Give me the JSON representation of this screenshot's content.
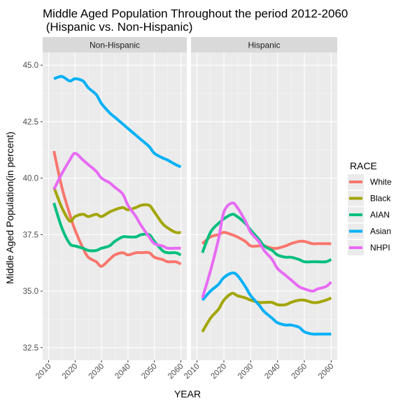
{
  "chart_data": {
    "type": "line",
    "title_line1": "Middle Aged Population Throughout the period 2012-2060",
    "title_line2": " (Hispanic vs. Non-Hispanic)",
    "xlabel": "YEAR",
    "ylabel": "Middle Aged Population(in percent)",
    "xlim": [
      2010,
      2060
    ],
    "ylim": [
      32.5,
      45.0
    ],
    "xticks": [
      2010,
      2020,
      2030,
      2040,
      2050,
      2060
    ],
    "xtick_labels": [
      "2010",
      "2020",
      "2030",
      "2040",
      "2050",
      "2060"
    ],
    "yticks": [
      32.5,
      35.0,
      37.5,
      40.0,
      42.5,
      45.0
    ],
    "ytick_labels": [
      "32.5",
      "35.0",
      "37.5",
      "40.0",
      "42.5",
      "45.0"
    ],
    "grid": true,
    "legend": {
      "title": "RACE",
      "position": "right",
      "items": [
        {
          "key": "white",
          "label": "White",
          "color": "#F8766D"
        },
        {
          "key": "black",
          "label": "Black",
          "color": "#A3A500"
        },
        {
          "key": "aian",
          "label": "AIAN",
          "color": "#00BF7D"
        },
        {
          "key": "asian",
          "label": "Asian",
          "color": "#00B0F6"
        },
        {
          "key": "nhpi",
          "label": "NHPI",
          "color": "#E76BF3"
        }
      ]
    },
    "panels": [
      {
        "label": "Non-Hispanic",
        "series": [
          {
            "key": "white",
            "x": [
              2012,
              2015,
              2018,
              2020,
              2023,
              2025,
              2028,
              2030,
              2033,
              2035,
              2038,
              2040,
              2043,
              2045,
              2048,
              2050,
              2053,
              2055,
              2058,
              2060
            ],
            "values": [
              41.2,
              39.6,
              38.4,
              37.7,
              36.9,
              36.5,
              36.3,
              36.1,
              36.4,
              36.6,
              36.7,
              36.6,
              36.7,
              36.7,
              36.7,
              36.5,
              36.4,
              36.3,
              36.3,
              36.2
            ]
          },
          {
            "key": "black",
            "x": [
              2012,
              2015,
              2018,
              2020,
              2023,
              2025,
              2028,
              2030,
              2033,
              2035,
              2038,
              2040,
              2043,
              2045,
              2048,
              2050,
              2053,
              2055,
              2058,
              2060
            ],
            "values": [
              39.6,
              38.7,
              38.1,
              38.3,
              38.4,
              38.3,
              38.4,
              38.3,
              38.5,
              38.6,
              38.7,
              38.6,
              38.7,
              38.8,
              38.8,
              38.5,
              38.0,
              37.8,
              37.6,
              37.6
            ]
          },
          {
            "key": "aian",
            "x": [
              2012,
              2015,
              2018,
              2020,
              2023,
              2025,
              2028,
              2030,
              2033,
              2035,
              2038,
              2040,
              2043,
              2045,
              2048,
              2050,
              2053,
              2055,
              2058,
              2060
            ],
            "values": [
              38.9,
              37.8,
              37.1,
              37.0,
              36.9,
              36.8,
              36.8,
              36.9,
              37.0,
              37.2,
              37.4,
              37.4,
              37.4,
              37.5,
              37.5,
              37.2,
              36.8,
              36.7,
              36.7,
              36.6
            ]
          },
          {
            "key": "asian",
            "x": [
              2012,
              2015,
              2018,
              2020,
              2023,
              2025,
              2028,
              2030,
              2033,
              2035,
              2038,
              2040,
              2043,
              2045,
              2048,
              2050,
              2053,
              2055,
              2058,
              2060
            ],
            "values": [
              44.4,
              44.5,
              44.3,
              44.4,
              44.3,
              44.0,
              43.7,
              43.3,
              42.9,
              42.7,
              42.4,
              42.2,
              41.9,
              41.7,
              41.4,
              41.1,
              40.9,
              40.8,
              40.6,
              40.5
            ]
          },
          {
            "key": "nhpi",
            "x": [
              2012,
              2015,
              2018,
              2020,
              2023,
              2025,
              2028,
              2030,
              2033,
              2035,
              2038,
              2040,
              2043,
              2045,
              2048,
              2050,
              2053,
              2055,
              2058,
              2060
            ],
            "values": [
              39.5,
              40.2,
              40.8,
              41.1,
              40.8,
              40.6,
              40.3,
              40.0,
              39.8,
              39.6,
              39.3,
              38.8,
              38.3,
              37.9,
              37.4,
              37.1,
              37.0,
              36.9,
              36.9,
              36.9
            ]
          }
        ]
      },
      {
        "label": "Hispanic",
        "series": [
          {
            "key": "white",
            "x": [
              2012,
              2015,
              2018,
              2020,
              2023,
              2025,
              2028,
              2030,
              2033,
              2035,
              2038,
              2040,
              2043,
              2045,
              2048,
              2050,
              2053,
              2055,
              2058,
              2060
            ],
            "values": [
              37.1,
              37.4,
              37.5,
              37.6,
              37.5,
              37.4,
              37.2,
              37.0,
              37.0,
              37.0,
              36.9,
              36.9,
              37.0,
              37.1,
              37.2,
              37.2,
              37.1,
              37.1,
              37.1,
              37.1
            ]
          },
          {
            "key": "black",
            "x": [
              2012,
              2015,
              2018,
              2020,
              2023,
              2025,
              2028,
              2030,
              2033,
              2035,
              2038,
              2040,
              2043,
              2045,
              2048,
              2050,
              2053,
              2055,
              2058,
              2060
            ],
            "values": [
              33.2,
              33.8,
              34.2,
              34.6,
              34.9,
              34.8,
              34.7,
              34.6,
              34.5,
              34.5,
              34.5,
              34.4,
              34.4,
              34.5,
              34.6,
              34.6,
              34.5,
              34.5,
              34.6,
              34.7
            ]
          },
          {
            "key": "aian",
            "x": [
              2012,
              2015,
              2018,
              2020,
              2023,
              2025,
              2028,
              2030,
              2033,
              2035,
              2038,
              2040,
              2043,
              2045,
              2048,
              2050,
              2053,
              2055,
              2058,
              2060
            ],
            "values": [
              36.7,
              37.6,
              38.0,
              38.2,
              38.4,
              38.3,
              38.0,
              37.7,
              37.3,
              37.0,
              36.8,
              36.6,
              36.5,
              36.5,
              36.4,
              36.3,
              36.3,
              36.3,
              36.3,
              36.4
            ]
          },
          {
            "key": "asian",
            "x": [
              2012,
              2015,
              2018,
              2020,
              2023,
              2025,
              2028,
              2030,
              2033,
              2035,
              2038,
              2040,
              2043,
              2045,
              2048,
              2050,
              2053,
              2055,
              2058,
              2060
            ],
            "values": [
              34.6,
              35.0,
              35.3,
              35.6,
              35.8,
              35.7,
              35.2,
              34.8,
              34.4,
              34.1,
              33.8,
              33.6,
              33.5,
              33.5,
              33.4,
              33.2,
              33.1,
              33.1,
              33.1,
              33.1
            ]
          },
          {
            "key": "nhpi",
            "x": [
              2012,
              2015,
              2018,
              2020,
              2023,
              2025,
              2028,
              2030,
              2033,
              2035,
              2038,
              2040,
              2043,
              2045,
              2048,
              2050,
              2053,
              2055,
              2058,
              2060
            ],
            "values": [
              34.7,
              35.9,
              37.3,
              38.5,
              38.9,
              38.7,
              38.1,
              37.6,
              37.2,
              36.8,
              36.4,
              36.0,
              35.7,
              35.5,
              35.2,
              35.1,
              35.0,
              35.1,
              35.2,
              35.4
            ]
          }
        ]
      }
    ]
  }
}
